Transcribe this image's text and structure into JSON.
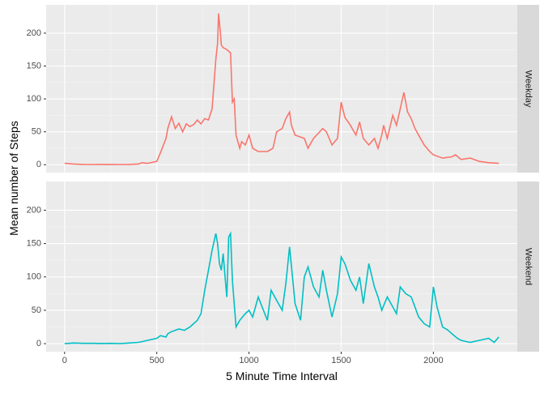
{
  "chart_data": {
    "type": "line",
    "facet": "rows",
    "xlabel": "5 Minute Time Interval",
    "ylabel": "Mean number of Steps",
    "xlim": [
      -100,
      2455
    ],
    "ylim": [
      -12,
      243
    ],
    "x_ticks": [
      0,
      500,
      1000,
      1500,
      2000
    ],
    "y_ticks": [
      0,
      50,
      100,
      150,
      200
    ],
    "grid": true,
    "legend": "none",
    "series": [
      {
        "name": "Weekday",
        "color": "#f8766d",
        "x": [
          0,
          50,
          100,
          150,
          200,
          250,
          300,
          350,
          400,
          420,
          450,
          500,
          520,
          550,
          560,
          580,
          600,
          620,
          640,
          660,
          680,
          700,
          720,
          740,
          760,
          780,
          800,
          820,
          830,
          835,
          840,
          845,
          850,
          860,
          880,
          900,
          910,
          920,
          930,
          950,
          960,
          980,
          1000,
          1020,
          1050,
          1100,
          1130,
          1150,
          1180,
          1200,
          1220,
          1230,
          1250,
          1300,
          1320,
          1330,
          1350,
          1400,
          1420,
          1450,
          1480,
          1500,
          1520,
          1550,
          1560,
          1580,
          1600,
          1620,
          1650,
          1680,
          1700,
          1720,
          1730,
          1750,
          1780,
          1800,
          1820,
          1840,
          1850,
          1860,
          1880,
          1900,
          1920,
          1950,
          1980,
          2000,
          2050,
          2100,
          2120,
          2150,
          2200,
          2250,
          2300,
          2355
        ],
        "values": [
          2,
          1,
          0.5,
          0.3,
          0.5,
          0.2,
          0.3,
          0.5,
          1,
          3,
          2,
          5,
          18,
          40,
          55,
          73,
          55,
          63,
          50,
          62,
          58,
          61,
          68,
          62,
          70,
          68,
          85,
          160,
          185,
          230,
          215,
          200,
          182,
          178,
          175,
          170,
          95,
          100,
          45,
          25,
          35,
          30,
          45,
          25,
          20,
          20,
          25,
          50,
          55,
          70,
          80,
          60,
          45,
          40,
          25,
          30,
          40,
          55,
          50,
          30,
          40,
          95,
          72,
          60,
          55,
          45,
          65,
          40,
          30,
          40,
          25,
          45,
          60,
          40,
          75,
          60,
          85,
          110,
          95,
          80,
          70,
          55,
          45,
          30,
          20,
          15,
          10,
          12,
          15,
          8,
          10,
          5,
          3,
          2
        ]
      },
      {
        "name": "Weekend",
        "color": "#00bfc4",
        "x": [
          0,
          50,
          100,
          150,
          200,
          250,
          300,
          350,
          400,
          420,
          450,
          500,
          520,
          550,
          560,
          580,
          600,
          620,
          650,
          680,
          700,
          720,
          740,
          760,
          780,
          800,
          820,
          830,
          840,
          850,
          860,
          870,
          880,
          890,
          900,
          910,
          920,
          930,
          950,
          980,
          1000,
          1020,
          1050,
          1100,
          1120,
          1150,
          1180,
          1200,
          1220,
          1250,
          1280,
          1300,
          1320,
          1350,
          1380,
          1400,
          1420,
          1450,
          1480,
          1500,
          1520,
          1550,
          1580,
          1600,
          1620,
          1650,
          1680,
          1700,
          1720,
          1750,
          1780,
          1800,
          1820,
          1850,
          1880,
          1900,
          1920,
          1950,
          1980,
          2000,
          2020,
          2050,
          2080,
          2100,
          2130,
          2150,
          2180,
          2200,
          2250,
          2300,
          2330,
          2355
        ],
        "values": [
          0,
          1,
          0.5,
          0.5,
          0.3,
          0.5,
          0.2,
          1,
          2,
          3,
          5,
          8,
          12,
          10,
          15,
          18,
          20,
          22,
          20,
          25,
          30,
          35,
          45,
          80,
          110,
          140,
          165,
          150,
          120,
          110,
          135,
          100,
          70,
          160,
          165,
          95,
          60,
          25,
          35,
          45,
          50,
          40,
          70,
          35,
          80,
          65,
          50,
          90,
          145,
          60,
          35,
          100,
          115,
          85,
          70,
          110,
          80,
          40,
          75,
          130,
          120,
          95,
          80,
          100,
          60,
          120,
          85,
          70,
          50,
          70,
          55,
          45,
          85,
          75,
          70,
          55,
          40,
          30,
          25,
          85,
          55,
          25,
          20,
          15,
          8,
          5,
          3,
          2,
          5,
          8,
          2,
          10
        ]
      }
    ]
  }
}
